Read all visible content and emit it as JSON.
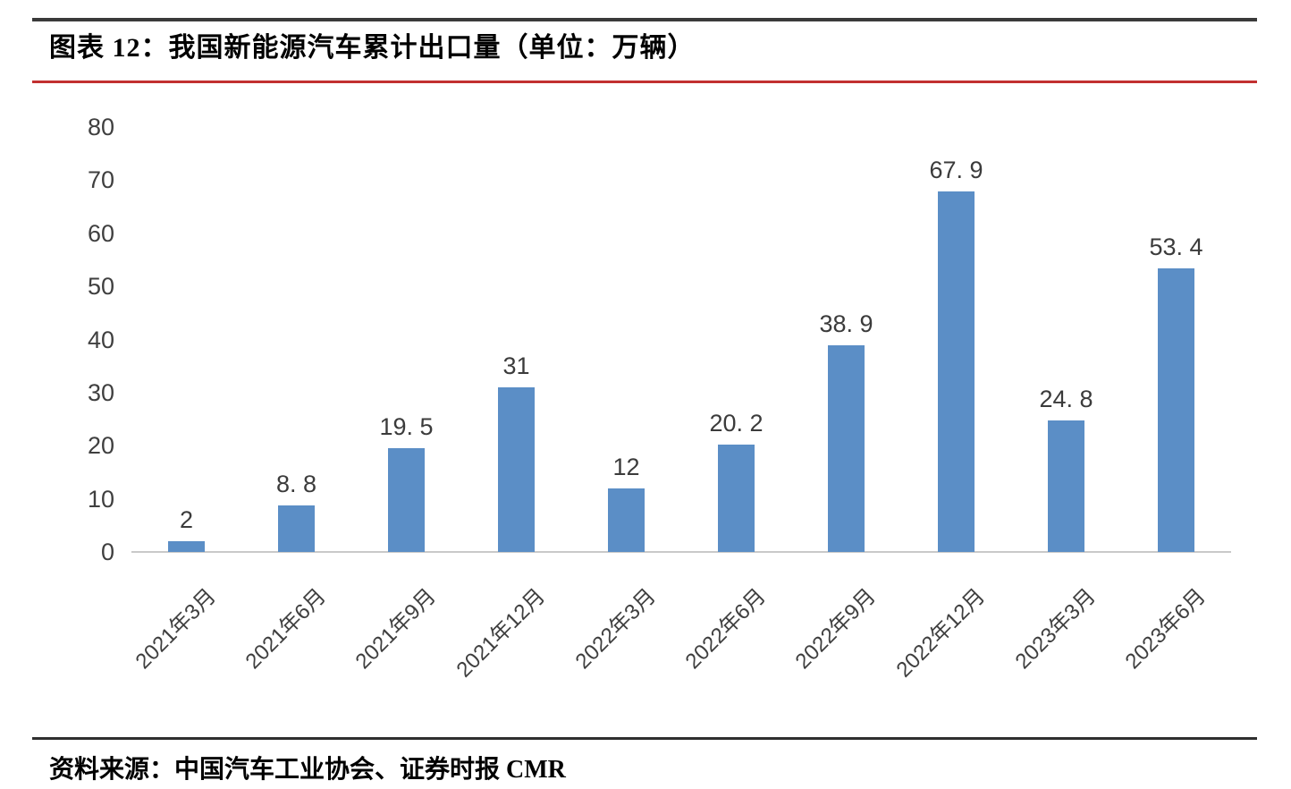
{
  "page": {
    "title": "图表 12：我国新能源汽车累计出口量（单位：万辆）",
    "source": "资料来源：中国汽车工业协会、证券时报 CMR"
  },
  "colors": {
    "bar": "#5B8EC6",
    "accent_red": "#C23030",
    "rule_dark": "#3A3A3A",
    "axis_line": "#C9C9C9",
    "tick_text": "#3F3F3F",
    "label_text": "#3B3B3B"
  },
  "chart_data": {
    "type": "bar",
    "title": "我国新能源汽车累计出口量",
    "unit": "万辆",
    "categories": [
      "2021年3月",
      "2021年6月",
      "2021年9月",
      "2021年12月",
      "2022年3月",
      "2022年6月",
      "2022年9月",
      "2022年12月",
      "2023年3月",
      "2023年6月"
    ],
    "values": [
      2,
      8.8,
      19.5,
      31,
      12,
      20.2,
      38.9,
      67.9,
      24.8,
      53.4
    ],
    "bar_labels": [
      "2",
      "8. 8",
      "19. 5",
      "31",
      "12",
      "20. 2",
      "38. 9",
      "67. 9",
      "24. 8",
      "53. 4"
    ],
    "ylim": [
      0,
      80
    ],
    "yticks": [
      0,
      10,
      20,
      30,
      40,
      50,
      60,
      70,
      80
    ],
    "xlabel": "",
    "ylabel": "",
    "grid": false,
    "legend": false,
    "x_tick_rotation_deg": 45
  }
}
